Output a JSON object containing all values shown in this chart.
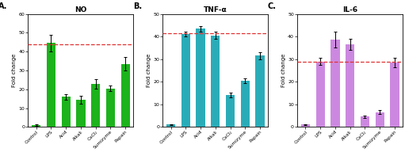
{
  "panels": [
    {
      "label": "A.",
      "title": "NO",
      "ylabel": "Fold change",
      "ylim": [
        0,
        60
      ],
      "yticks": [
        0,
        10,
        20,
        30,
        40,
        50,
        60
      ],
      "bar_color": "#1cb31c",
      "dashed_line_y": 44,
      "categories": [
        "Control",
        "LPS",
        "Acid",
        "Alkali",
        "CaCl₂",
        "Sumizyme",
        "Papain"
      ],
      "values": [
        1.0,
        44.5,
        16.0,
        14.5,
        23.0,
        20.5,
        33.5
      ],
      "errors": [
        0.3,
        4.5,
        1.5,
        2.0,
        2.5,
        1.5,
        3.5
      ]
    },
    {
      "label": "B.",
      "title": "TNF-α",
      "ylabel": "Fold change",
      "ylim": [
        0,
        50
      ],
      "yticks": [
        0,
        10,
        20,
        30,
        40,
        50
      ],
      "bar_color": "#2aacb8",
      "dashed_line_y": 41.5,
      "categories": [
        "Control",
        "LPS",
        "Acid",
        "Alkali",
        "CaCl₂",
        "Sumizyme",
        "Papain"
      ],
      "values": [
        1.0,
        41.0,
        43.5,
        40.5,
        14.0,
        20.5,
        31.5
      ],
      "errors": [
        0.3,
        1.0,
        1.2,
        1.5,
        1.0,
        1.0,
        1.5
      ]
    },
    {
      "label": "C.",
      "title": "IL-6",
      "ylabel": "Fold change",
      "ylim": [
        0,
        50
      ],
      "yticks": [
        0,
        10,
        20,
        30,
        40,
        50
      ],
      "bar_color": "#cc88e0",
      "dashed_line_y": 29.0,
      "categories": [
        "Control",
        "LPS",
        "Acid",
        "Alkali",
        "CaCl₂",
        "Sumizyme",
        "Papain"
      ],
      "values": [
        1.0,
        29.0,
        38.5,
        36.5,
        4.5,
        6.5,
        28.5
      ],
      "errors": [
        0.3,
        1.5,
        3.5,
        2.5,
        0.5,
        0.8,
        2.0
      ]
    }
  ],
  "background_color": "#ffffff",
  "dashed_line_color": "#e03030",
  "fig_width": 5.11,
  "fig_height": 1.92,
  "dpi": 100
}
